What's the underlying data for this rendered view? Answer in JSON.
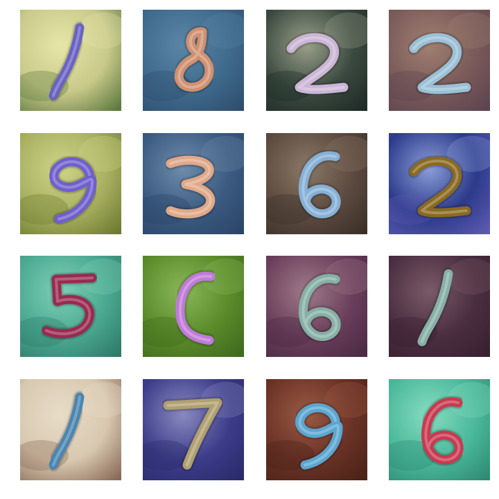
{
  "grid": {
    "rows": 4,
    "cols": 4,
    "tiles": [
      {
        "glyph": "1",
        "bg": [
          "#c9c98a",
          "#e6e6a8",
          "#5d7a3e"
        ],
        "stroke": "#6a62c4"
      },
      {
        "glyph": "8",
        "bg": [
          "#3f6a8c",
          "#5b86a6",
          "#2f4e6e"
        ],
        "stroke": "#d09070"
      },
      {
        "glyph": "2",
        "bg": [
          "#3b4a40",
          "#9aa08a",
          "#1e2a26"
        ],
        "stroke": "#cbb6d6"
      },
      {
        "glyph": "2",
        "bg": [
          "#7a5a5a",
          "#a08070",
          "#5c4450"
        ],
        "stroke": "#9ac0d6"
      },
      {
        "glyph": "9",
        "bg": [
          "#a8b060",
          "#cfd488",
          "#6e7a30"
        ],
        "stroke": "#6f5fcf"
      },
      {
        "glyph": "3",
        "bg": [
          "#3a5a80",
          "#6e8cab",
          "#2c4668"
        ],
        "stroke": "#e0a888"
      },
      {
        "glyph": "6",
        "bg": [
          "#5c4a40",
          "#8a7866",
          "#3a3028"
        ],
        "stroke": "#86b0d6"
      },
      {
        "glyph": "2",
        "bg": [
          "#2c3a8a",
          "#8a9ed8",
          "#5c5ab0"
        ],
        "stroke": "#8a6a20"
      },
      {
        "glyph": "5",
        "bg": [
          "#4aa890",
          "#7ed0b6",
          "#2f7a6a"
        ],
        "stroke": "#9a2a50"
      },
      {
        "glyph": "C",
        "bg": [
          "#5a8a2a",
          "#8ab858",
          "#3e6a1e"
        ],
        "stroke": "#c07ad8"
      },
      {
        "glyph": "6",
        "bg": [
          "#6a3e5a",
          "#a07a8a",
          "#4a2a44"
        ],
        "stroke": "#86b0a6"
      },
      {
        "glyph": "1",
        "bg": [
          "#4a2e40",
          "#7a5a68",
          "#382030"
        ],
        "stroke": "#86b0a6"
      },
      {
        "glyph": "1",
        "bg": [
          "#d8c8b0",
          "#e8dcc8",
          "#8a6a58"
        ],
        "stroke": "#4a86b0"
      },
      {
        "glyph": "7",
        "bg": [
          "#3c3c8a",
          "#8a8ac0",
          "#2a2a6a"
        ],
        "stroke": "#b0a070"
      },
      {
        "glyph": "9",
        "bg": [
          "#6a3226",
          "#9a5a44",
          "#4a2218"
        ],
        "stroke": "#5aa6d0"
      },
      {
        "glyph": "6",
        "bg": [
          "#4ab89a",
          "#86dcc0",
          "#2f8a72"
        ],
        "stroke": "#c83a50"
      }
    ]
  }
}
